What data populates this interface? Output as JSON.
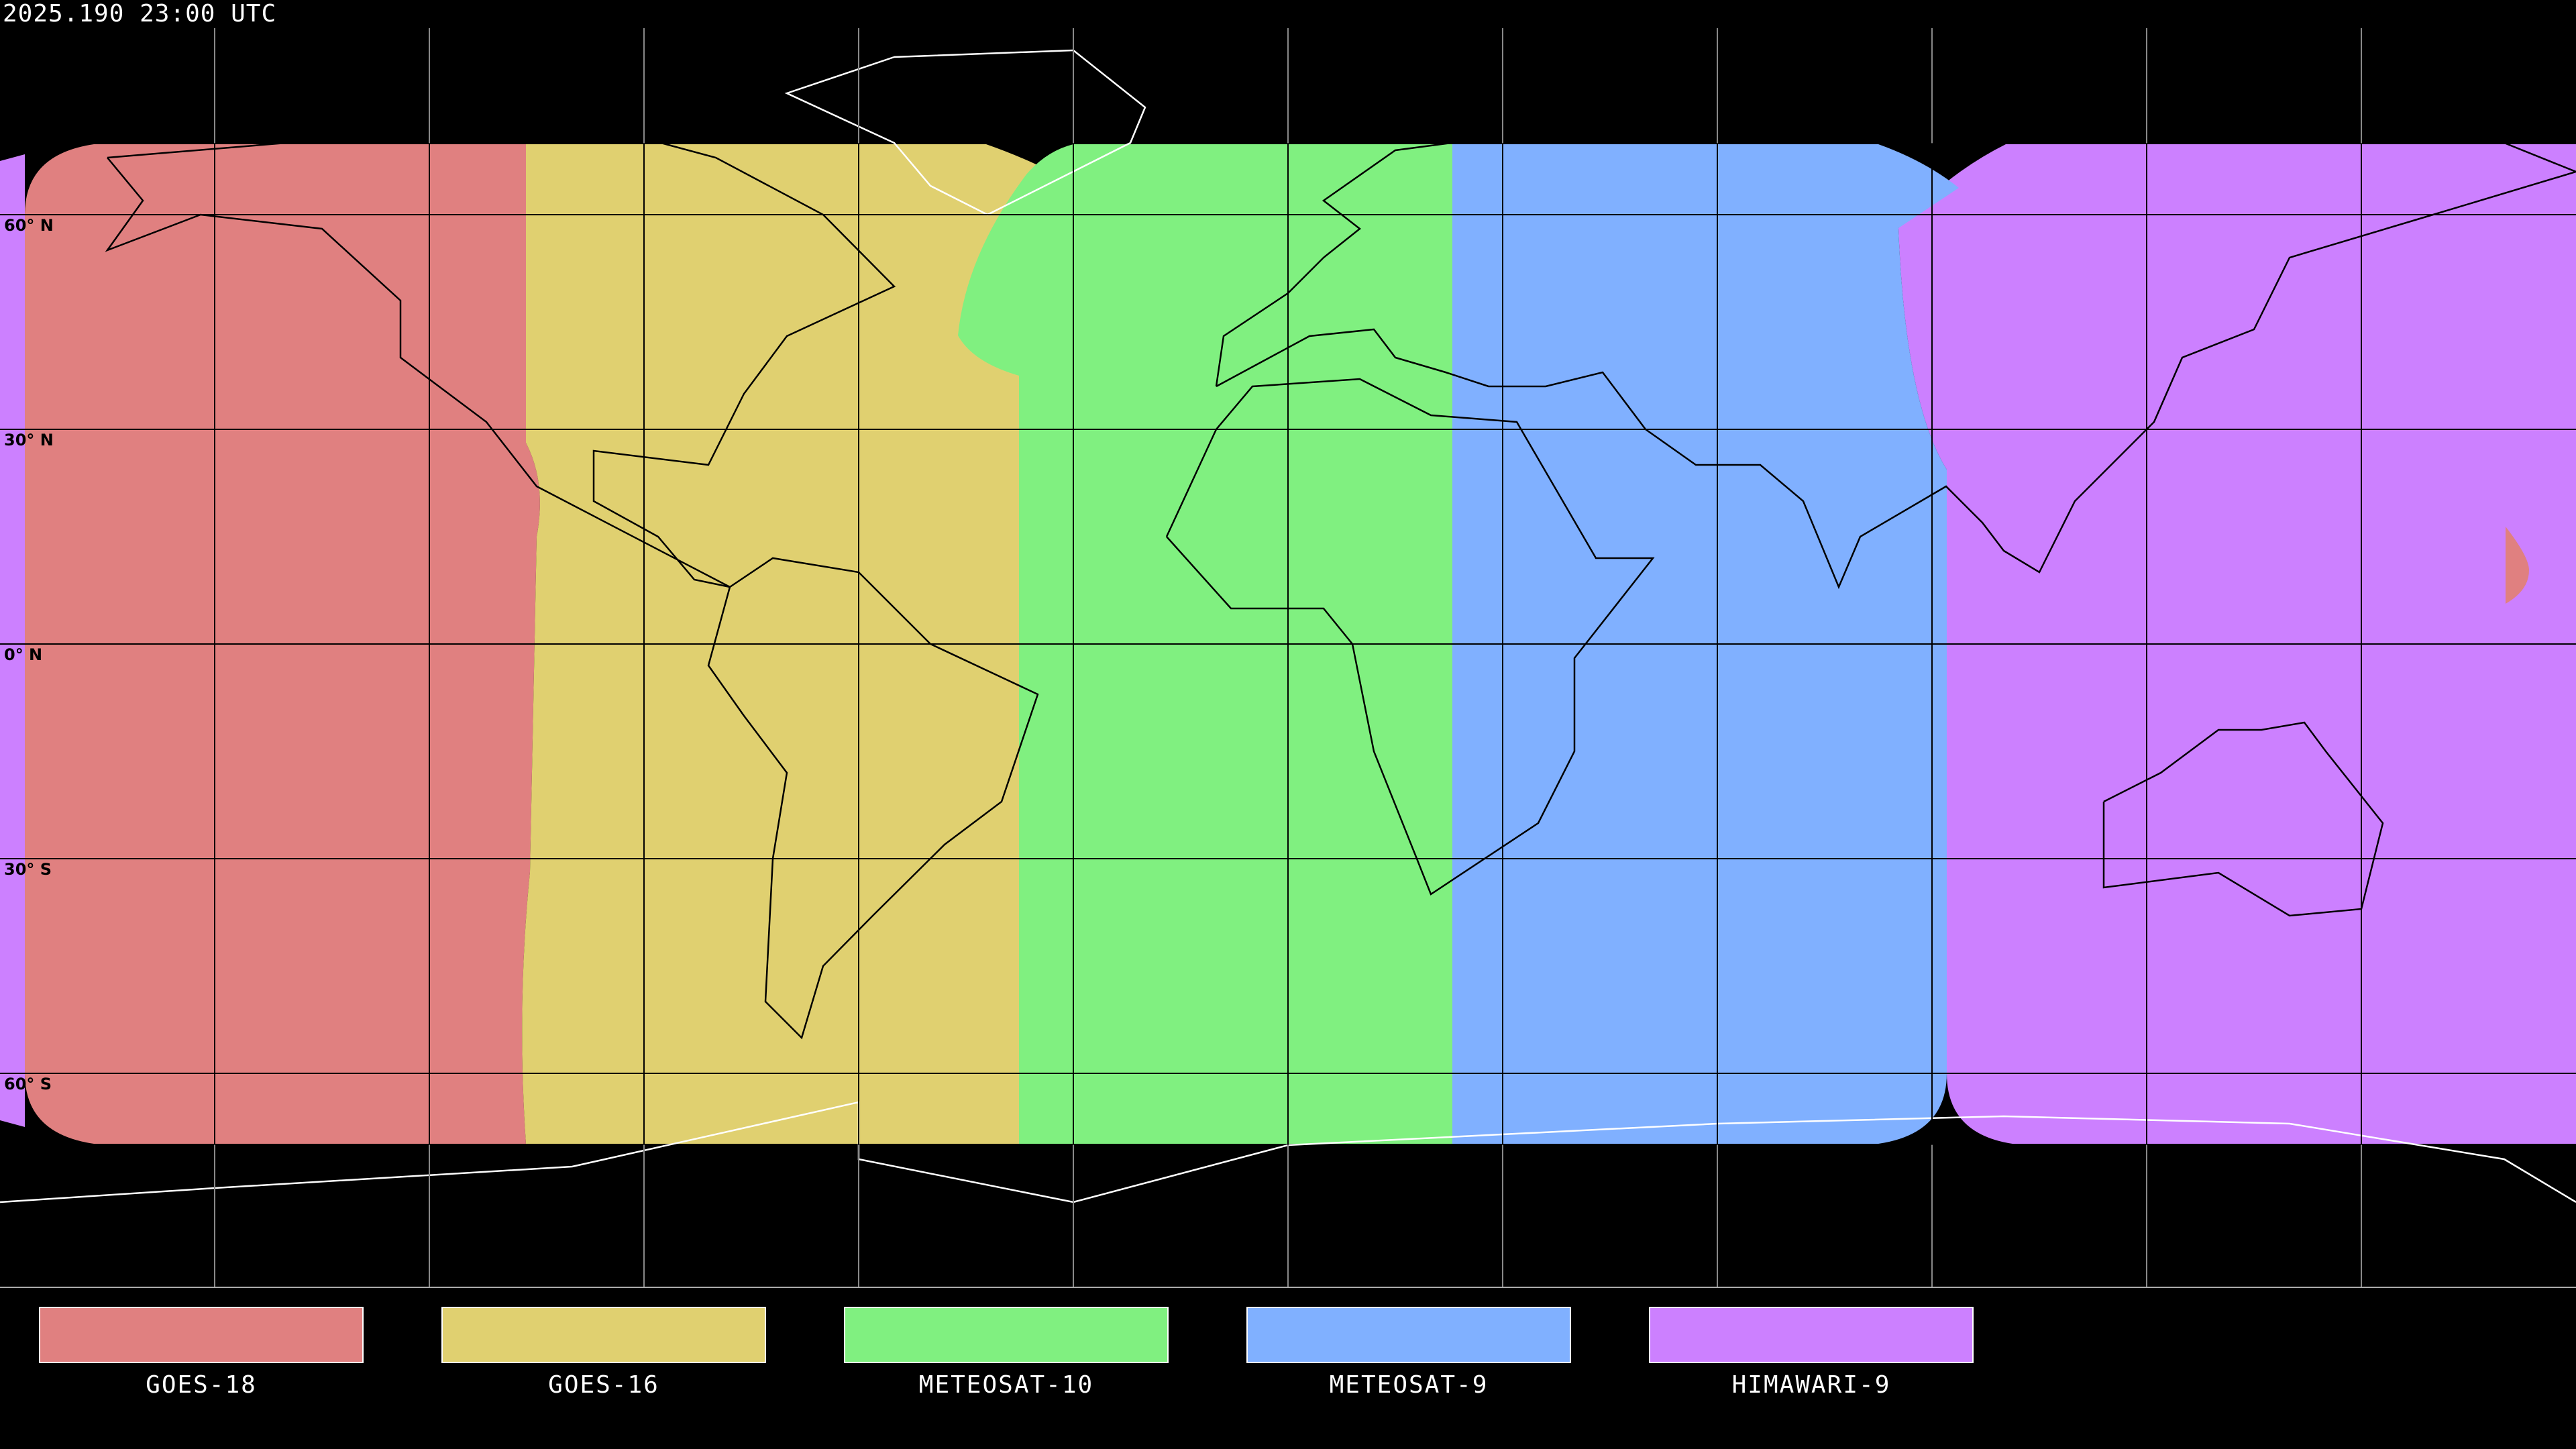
{
  "header": {
    "timestamp": "2025.190 23:00 UTC"
  },
  "map": {
    "projection": "equirectangular",
    "lat_labels": [
      "60° N",
      "30° N",
      "0° N",
      "30° S",
      "60° S"
    ],
    "background": "#000000",
    "gridline_spacing_degrees": 30
  },
  "legend": [
    {
      "label": "GOES-18",
      "color": "#e08080"
    },
    {
      "label": "GOES-16",
      "color": "#e0d070"
    },
    {
      "label": "METEOSAT-10",
      "color": "#80f080"
    },
    {
      "label": "METEOSAT-9",
      "color": "#80b0ff"
    },
    {
      "label": "HIMAWARI-9",
      "color": "#cc80ff"
    }
  ]
}
